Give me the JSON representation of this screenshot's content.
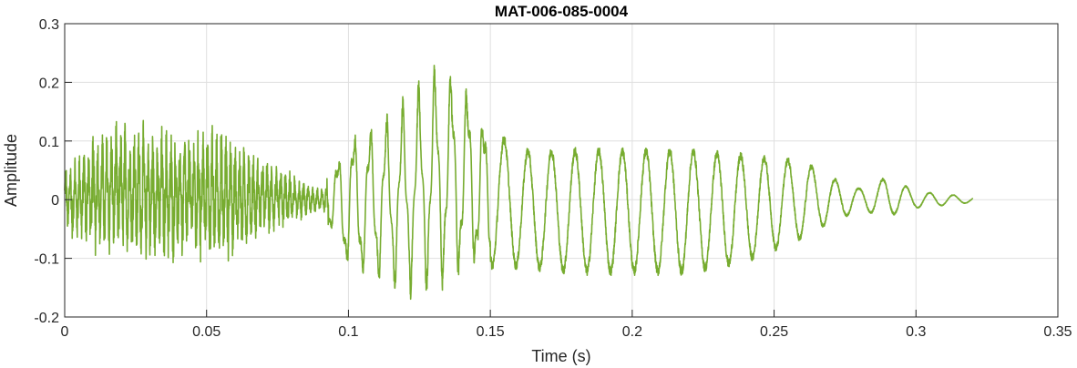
{
  "chart_data": {
    "type": "line",
    "title": "MAT-006-085-0004",
    "xlabel": "Time (s)",
    "ylabel": "Amplitude",
    "xlim": [
      0,
      0.35
    ],
    "ylim": [
      -0.2,
      0.3
    ],
    "grid": true,
    "x_ticks": [
      0,
      0.05,
      0.1,
      0.15,
      0.2,
      0.25,
      0.3,
      0.35
    ],
    "x_tick_labels": [
      "0",
      "0.05",
      "0.1",
      "0.15",
      "0.2",
      "0.25",
      "0.3",
      "0.35"
    ],
    "y_ticks": [
      -0.2,
      -0.1,
      0,
      0.1,
      0.2,
      0.3
    ],
    "y_tick_labels": [
      "-0.2",
      "-0.1",
      "0",
      "0.1",
      "0.2",
      "0.3"
    ],
    "series": [
      {
        "color": "#77AC30",
        "x_start": 0,
        "x_end": 0.32,
        "envelope": [
          {
            "t": 0.0,
            "max": 0.07,
            "min": -0.07
          },
          {
            "t": 0.01,
            "max": 0.12,
            "min": -0.1
          },
          {
            "t": 0.02,
            "max": 0.15,
            "min": -0.12
          },
          {
            "t": 0.03,
            "max": 0.14,
            "min": -0.12
          },
          {
            "t": 0.04,
            "max": 0.13,
            "min": -0.12
          },
          {
            "t": 0.05,
            "max": 0.14,
            "min": -0.12
          },
          {
            "t": 0.06,
            "max": 0.12,
            "min": -0.11
          },
          {
            "t": 0.07,
            "max": 0.08,
            "min": -0.07
          },
          {
            "t": 0.08,
            "max": 0.05,
            "min": -0.05
          },
          {
            "t": 0.09,
            "max": 0.02,
            "min": -0.02
          },
          {
            "t": 0.095,
            "max": 0.07,
            "min": -0.08
          },
          {
            "t": 0.1,
            "max": 0.13,
            "min": -0.14
          },
          {
            "t": 0.11,
            "max": 0.14,
            "min": -0.15
          },
          {
            "t": 0.12,
            "max": 0.18,
            "min": -0.17
          },
          {
            "t": 0.13,
            "max": 0.24,
            "min": -0.17
          },
          {
            "t": 0.14,
            "max": 0.23,
            "min": -0.15
          },
          {
            "t": 0.15,
            "max": 0.13,
            "min": -0.12
          },
          {
            "t": 0.16,
            "max": 0.09,
            "min": -0.12
          },
          {
            "t": 0.18,
            "max": 0.09,
            "min": -0.13
          },
          {
            "t": 0.2,
            "max": 0.09,
            "min": -0.13
          },
          {
            "t": 0.22,
            "max": 0.09,
            "min": -0.13
          },
          {
            "t": 0.24,
            "max": 0.08,
            "min": -0.11
          },
          {
            "t": 0.26,
            "max": 0.07,
            "min": -0.07
          },
          {
            "t": 0.27,
            "max": 0.04,
            "min": -0.04
          },
          {
            "t": 0.28,
            "max": 0.02,
            "min": -0.02
          },
          {
            "t": 0.29,
            "max": 0.04,
            "min": -0.03
          },
          {
            "t": 0.3,
            "max": 0.015,
            "min": -0.015
          },
          {
            "t": 0.32,
            "max": 0.005,
            "min": -0.005
          }
        ]
      }
    ]
  }
}
